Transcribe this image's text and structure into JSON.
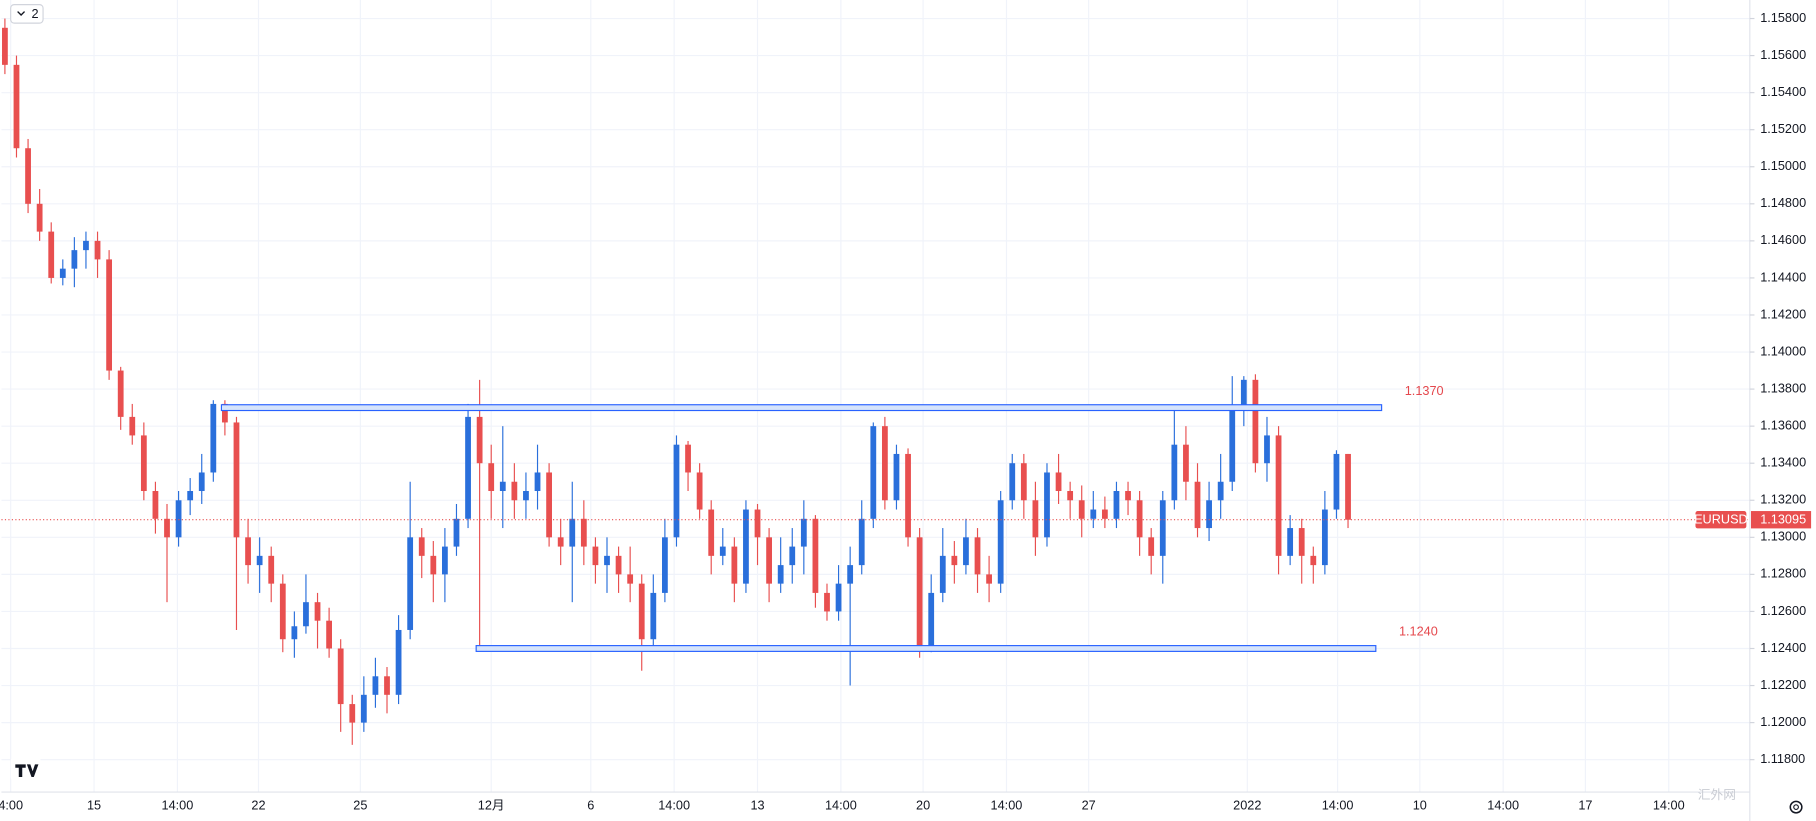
{
  "ui": {
    "indicator_toggle": "2",
    "watermark": "汇外网"
  },
  "chart_data": {
    "type": "candlestick",
    "symbol": "EURUSD",
    "up_color": "#2a6fdb",
    "down_color": "#e84f4f",
    "grid": true,
    "open": [
      1.1575,
      1.1555,
      1.151,
      1.148,
      1.1465,
      1.144,
      1.1445,
      1.1455,
      1.146,
      1.145,
      1.139,
      1.1365,
      1.1355,
      1.1325,
      1.131,
      1.13,
      1.132,
      1.1325,
      1.1335,
      1.1372,
      1.1362,
      1.13,
      1.1285,
      1.129,
      1.1275,
      1.1245,
      1.1252,
      1.1265,
      1.1255,
      1.124,
      1.121,
      1.12,
      1.1215,
      1.1225,
      1.1215,
      1.125,
      1.13,
      1.129,
      1.128,
      1.1295,
      1.131,
      1.1365,
      1.134,
      1.1325,
      1.133,
      1.132,
      1.1325,
      1.1335,
      1.13,
      1.1295,
      1.131,
      1.1295,
      1.1285,
      1.129,
      1.128,
      1.1275,
      1.1245,
      1.127,
      1.13,
      1.135,
      1.1335,
      1.1315,
      1.129,
      1.1295,
      1.1275,
      1.1315,
      1.13,
      1.1275,
      1.1285,
      1.1295,
      1.131,
      1.127,
      1.126,
      1.1275,
      1.1285,
      1.131,
      1.136,
      1.132,
      1.1345,
      1.13,
      1.124,
      1.127,
      1.129,
      1.1285,
      1.13,
      1.128,
      1.1275,
      1.132,
      1.134,
      1.132,
      1.13,
      1.1335,
      1.1325,
      1.132,
      1.131,
      1.1315,
      1.131,
      1.1325,
      1.132,
      1.13,
      1.129,
      1.132,
      1.135,
      1.133,
      1.1305,
      1.132,
      1.133,
      1.137,
      1.1385,
      1.134,
      1.1355,
      1.129,
      1.1305,
      1.129,
      1.1285,
      1.1315,
      1.1345
    ],
    "high": [
      1.158,
      1.156,
      1.1515,
      1.1488,
      1.147,
      1.145,
      1.1462,
      1.1465,
      1.1465,
      1.1455,
      1.1392,
      1.1372,
      1.1362,
      1.133,
      1.1318,
      1.1325,
      1.1332,
      1.1345,
      1.1374,
      1.1374,
      1.1365,
      1.131,
      1.13,
      1.1295,
      1.128,
      1.126,
      1.128,
      1.127,
      1.1262,
      1.1245,
      1.1215,
      1.1225,
      1.1235,
      1.123,
      1.1258,
      1.133,
      1.1305,
      1.1298,
      1.1305,
      1.1318,
      1.1372,
      1.1385,
      1.135,
      1.136,
      1.134,
      1.1335,
      1.135,
      1.134,
      1.131,
      1.133,
      1.132,
      1.13,
      1.13,
      1.1295,
      1.1295,
      1.128,
      1.128,
      1.131,
      1.1355,
      1.1352,
      1.134,
      1.132,
      1.1305,
      1.13,
      1.132,
      1.1318,
      1.1305,
      1.13,
      1.1305,
      1.132,
      1.1312,
      1.1275,
      1.1285,
      1.1295,
      1.132,
      1.1362,
      1.1365,
      1.135,
      1.1348,
      1.1305,
      1.128,
      1.1305,
      1.1298,
      1.131,
      1.1305,
      1.129,
      1.1325,
      1.1345,
      1.1345,
      1.133,
      1.134,
      1.1345,
      1.133,
      1.1328,
      1.1325,
      1.1322,
      1.133,
      1.133,
      1.1325,
      1.1305,
      1.1325,
      1.137,
      1.136,
      1.134,
      1.133,
      1.1345,
      1.1387,
      1.1387,
      1.1388,
      1.1365,
      1.136,
      1.1312,
      1.131,
      1.1295,
      1.1325,
      1.1347,
      1.1345
    ],
    "low": [
      1.155,
      1.1505,
      1.1475,
      1.146,
      1.1437,
      1.1436,
      1.1435,
      1.1445,
      1.144,
      1.1385,
      1.1358,
      1.135,
      1.132,
      1.1302,
      1.1265,
      1.1295,
      1.1312,
      1.1318,
      1.133,
      1.1355,
      1.125,
      1.1275,
      1.127,
      1.1265,
      1.1238,
      1.1235,
      1.1248,
      1.124,
      1.1235,
      1.1195,
      1.1188,
      1.1195,
      1.1208,
      1.1205,
      1.121,
      1.1245,
      1.1278,
      1.1265,
      1.1265,
      1.129,
      1.1305,
      1.124,
      1.131,
      1.1305,
      1.131,
      1.131,
      1.1315,
      1.1295,
      1.1285,
      1.1265,
      1.1285,
      1.1275,
      1.127,
      1.127,
      1.1265,
      1.1228,
      1.124,
      1.1265,
      1.1295,
      1.1325,
      1.131,
      1.128,
      1.1285,
      1.1265,
      1.127,
      1.1285,
      1.1265,
      1.127,
      1.1275,
      1.128,
      1.1262,
      1.1255,
      1.1255,
      1.122,
      1.128,
      1.1305,
      1.1315,
      1.1315,
      1.1295,
      1.1235,
      1.1238,
      1.1265,
      1.1275,
      1.128,
      1.127,
      1.1265,
      1.127,
      1.1315,
      1.131,
      1.129,
      1.1295,
      1.1318,
      1.131,
      1.13,
      1.1305,
      1.1305,
      1.1305,
      1.1312,
      1.129,
      1.128,
      1.1275,
      1.1315,
      1.132,
      1.13,
      1.1298,
      1.131,
      1.1325,
      1.136,
      1.1335,
      1.133,
      1.128,
      1.1285,
      1.1275,
      1.1275,
      1.128,
      1.131,
      1.1305
    ],
    "close": [
      1.1555,
      1.151,
      1.148,
      1.1465,
      1.144,
      1.1445,
      1.1455,
      1.146,
      1.145,
      1.139,
      1.1365,
      1.1355,
      1.1325,
      1.131,
      1.13,
      1.132,
      1.1325,
      1.1335,
      1.1372,
      1.1362,
      1.13,
      1.1285,
      1.129,
      1.1275,
      1.1245,
      1.1252,
      1.1265,
      1.1255,
      1.124,
      1.121,
      1.12,
      1.1215,
      1.1225,
      1.1215,
      1.125,
      1.13,
      1.129,
      1.128,
      1.1295,
      1.131,
      1.1365,
      1.134,
      1.1325,
      1.133,
      1.132,
      1.1325,
      1.1335,
      1.13,
      1.1295,
      1.131,
      1.1295,
      1.1285,
      1.129,
      1.128,
      1.1275,
      1.1245,
      1.127,
      1.13,
      1.135,
      1.1335,
      1.1315,
      1.129,
      1.1295,
      1.1275,
      1.1315,
      1.13,
      1.1275,
      1.1285,
      1.1295,
      1.131,
      1.127,
      1.126,
      1.1275,
      1.1285,
      1.131,
      1.136,
      1.132,
      1.1345,
      1.13,
      1.124,
      1.127,
      1.129,
      1.1285,
      1.13,
      1.128,
      1.1275,
      1.132,
      1.134,
      1.132,
      1.13,
      1.1335,
      1.1325,
      1.132,
      1.131,
      1.1315,
      1.131,
      1.1325,
      1.132,
      1.13,
      1.129,
      1.132,
      1.135,
      1.133,
      1.1305,
      1.132,
      1.133,
      1.137,
      1.1385,
      1.134,
      1.1355,
      1.129,
      1.1305,
      1.129,
      1.1285,
      1.1315,
      1.1345,
      1.13095
    ],
    "xlim": [
      -0.3,
      150.7
    ],
    "xticks": [
      {
        "value": 0.5,
        "label": "4:00"
      },
      {
        "value": 7.7,
        "label": "15"
      },
      {
        "value": 14.9,
        "label": "14:00"
      },
      {
        "value": 21.9,
        "label": "22"
      },
      {
        "value": 30.7,
        "label": "25"
      },
      {
        "value": 42,
        "label": "12月"
      },
      {
        "value": 50.6,
        "label": "6"
      },
      {
        "value": 57.8,
        "label": "14:00"
      },
      {
        "value": 65,
        "label": "13"
      },
      {
        "value": 72.2,
        "label": "14:00"
      },
      {
        "value": 79.3,
        "label": "20"
      },
      {
        "value": 86.5,
        "label": "14:00"
      },
      {
        "value": 93.6,
        "label": "27"
      },
      {
        "value": 107.3,
        "label": "2022"
      },
      {
        "value": 115.1,
        "label": "14:00"
      },
      {
        "value": 122.2,
        "label": "10"
      },
      {
        "value": 129.4,
        "label": "14:00"
      },
      {
        "value": 136.5,
        "label": "17"
      },
      {
        "value": 143.7,
        "label": "14:00"
      }
    ],
    "ylim": [
      1.11625,
      1.159
    ],
    "yticks": [
      {
        "value": 1.158,
        "label": "1.15800"
      },
      {
        "value": 1.156,
        "label": "1.15600"
      },
      {
        "value": 1.154,
        "label": "1.15400"
      },
      {
        "value": 1.152,
        "label": "1.15200"
      },
      {
        "value": 1.15,
        "label": "1.15000"
      },
      {
        "value": 1.148,
        "label": "1.14800"
      },
      {
        "value": 1.146,
        "label": "1.14600"
      },
      {
        "value": 1.144,
        "label": "1.14400"
      },
      {
        "value": 1.142,
        "label": "1.14200"
      },
      {
        "value": 1.14,
        "label": "1.14000"
      },
      {
        "value": 1.138,
        "label": "1.13800"
      },
      {
        "value": 1.136,
        "label": "1.13600"
      },
      {
        "value": 1.134,
        "label": "1.13400"
      },
      {
        "value": 1.132,
        "label": "1.13200"
      },
      {
        "value": 1.13,
        "label": "1.13000"
      },
      {
        "value": 1.128,
        "label": "1.12800"
      },
      {
        "value": 1.126,
        "label": "1.12600"
      },
      {
        "value": 1.124,
        "label": "1.12400"
      },
      {
        "value": 1.122,
        "label": "1.12200"
      },
      {
        "value": 1.12,
        "label": "1.12000"
      },
      {
        "value": 1.118,
        "label": "1.11800"
      }
    ],
    "levels": [
      {
        "value": 1.137,
        "label": "1.1370",
        "x": [
          18.7,
          118.9
        ]
      },
      {
        "value": 1.124,
        "label": "1.1240",
        "x": [
          40.7,
          118.4
        ]
      }
    ]
  }
}
